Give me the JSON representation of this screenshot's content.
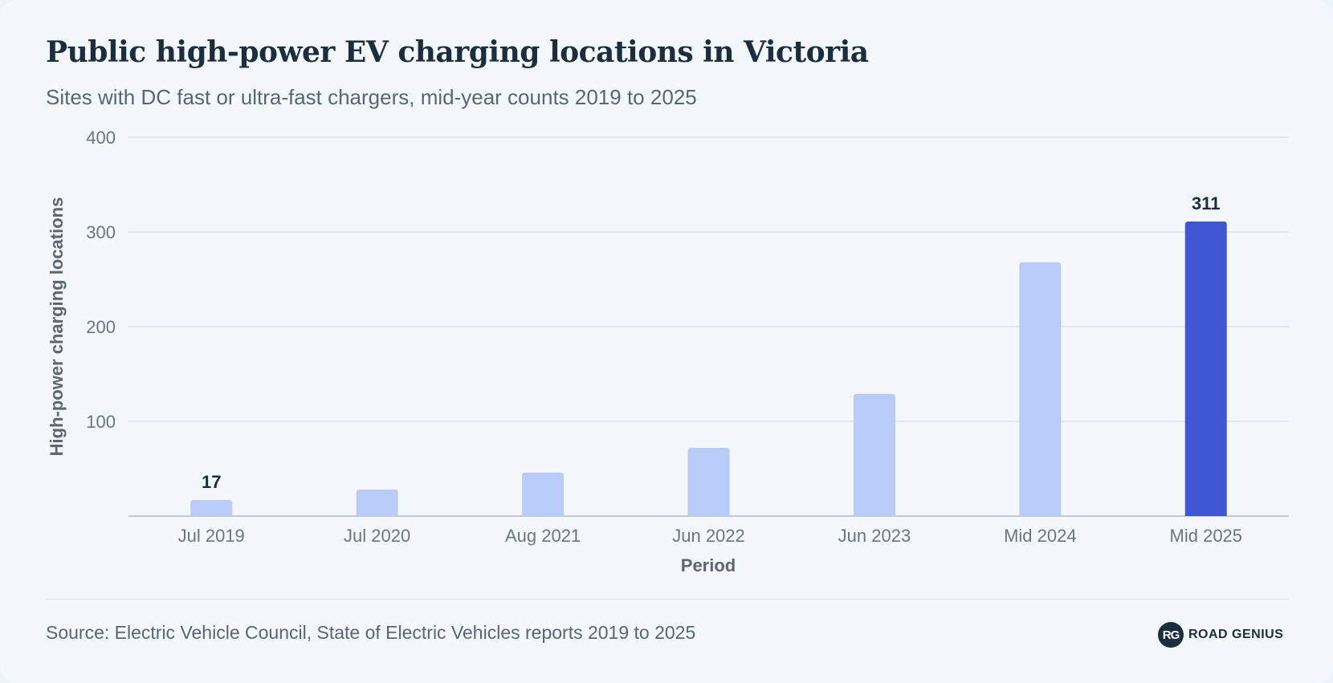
{
  "header": {
    "title": "Public high-power EV charging locations in Victoria",
    "subtitle": "Sites with DC fast or ultra-fast chargers, mid-year counts 2019 to 2025"
  },
  "footer": {
    "source": "Source: Electric Vehicle Council, State of Electric Vehicles reports 2019 to 2025",
    "brand_mark": "RG",
    "brand_name": "ROAD GENIUS"
  },
  "colors": {
    "bar": "#b9cbf8",
    "highlight_bar": "#3f56d3",
    "grid": "#dde3ea",
    "baseline": "#b3bac3"
  },
  "chart_data": {
    "type": "bar",
    "title": "Public high-power EV charging locations in Victoria",
    "subtitle": "Sites with DC fast or ultra-fast chargers, mid-year counts 2019 to 2025",
    "xlabel": "Period",
    "ylabel": "High-power charging locations",
    "categories": [
      "Jul 2019",
      "Jul 2020",
      "Aug 2021",
      "Jun 2022",
      "Jun 2023",
      "Mid 2024",
      "Mid 2025"
    ],
    "values": [
      17,
      28,
      46,
      72,
      129,
      268,
      311
    ],
    "data_labels": [
      "17",
      "",
      "",
      "",
      "",
      "",
      "311"
    ],
    "highlight_index": 6,
    "ylim": [
      0,
      400
    ],
    "yticks": [
      100,
      200,
      300,
      400
    ],
    "grid": true,
    "legend": "none"
  }
}
